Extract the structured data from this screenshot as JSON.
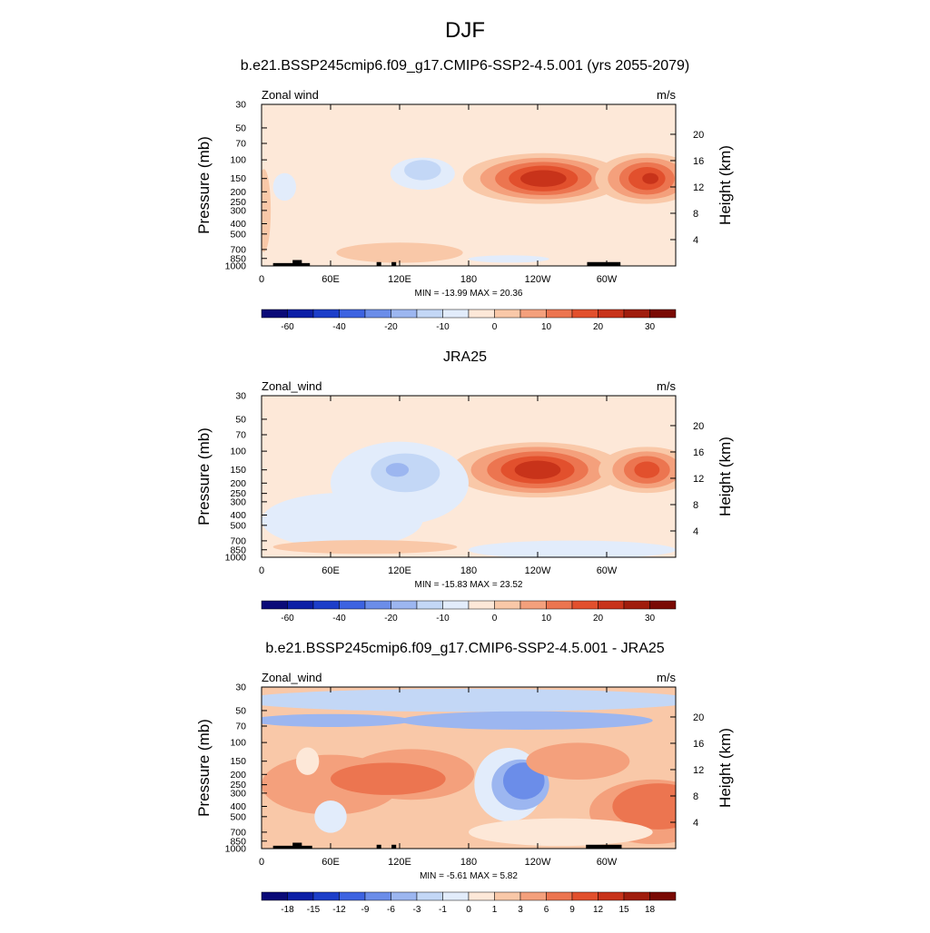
{
  "figure": {
    "title": "DJF"
  },
  "colors": {
    "wind_levels": [
      "#0a0a78",
      "#0c1fa6",
      "#1c3ec9",
      "#3d63e1",
      "#6b8de9",
      "#9cb6f0",
      "#c3d7f6",
      "#e2ecfb",
      "#fde8d8",
      "#f9c8a8",
      "#f4a07c",
      "#ec7550",
      "#e2502d",
      "#c8331a",
      "#a01d0d",
      "#7a0a04"
    ],
    "diff_levels": [
      "#0a0a78",
      "#0c1fa6",
      "#1c3ec9",
      "#3d63e1",
      "#6b8de9",
      "#9cb6f0",
      "#c3d7f6",
      "#e2ecfb",
      "#fde8d8",
      "#f9c8a8",
      "#f4a07c",
      "#ec7550",
      "#e2502d",
      "#c8331a",
      "#a01d0d",
      "#7a0a04"
    ],
    "terrain": "#000000"
  },
  "chart_data": [
    {
      "type": "heatmap",
      "title": "b.e21.BSSP245cmip6.f09_g17.CMIP6-SSP2-4.5.001 (yrs 2055-2079)",
      "left_label": "Zonal wind",
      "units_label": "m/s",
      "ylabel": "Pressure (mb)",
      "right_ylabel": "Height (km)",
      "x_ticks": [
        "0",
        "60E",
        "120E",
        "180",
        "120W",
        "60W"
      ],
      "x_tick_lon": [
        0,
        60,
        120,
        180,
        240,
        300
      ],
      "xlim": [
        0,
        360
      ],
      "y_ticks": [
        "30",
        "50",
        "70",
        "100",
        "150",
        "200",
        "250",
        "300",
        "400",
        "500",
        "700",
        "850",
        "1000"
      ],
      "y_tick_p": [
        30,
        50,
        70,
        100,
        150,
        200,
        250,
        300,
        400,
        500,
        700,
        850,
        1000
      ],
      "ylim": [
        1000,
        30
      ],
      "yscale": "log",
      "height_ticks": [
        "20",
        "16",
        "12",
        "8",
        "4"
      ],
      "height_tick_km": [
        20,
        16,
        12,
        8,
        4
      ],
      "min": -13.99,
      "max": 20.36,
      "stats_text": "MIN = -13.99  MAX =  20.36",
      "colorbar_labels": [
        "-60",
        "-40",
        "-20",
        "-10",
        "0",
        "10",
        "20",
        "30"
      ],
      "colorbar_label_idx": [
        1,
        3,
        5,
        7,
        9,
        11,
        13,
        15
      ],
      "palette": "wind_levels",
      "background_level": 8,
      "features": [
        {
          "lon": 170,
          "p": 3.0,
          "sx": 80,
          "sy": 0.7,
          "level": 9
        },
        {
          "lon": 245,
          "p": 150,
          "sx": 70,
          "sy": 0.55,
          "level": 9
        },
        {
          "lon": 245,
          "p": 150,
          "sx": 55,
          "sy": 0.45,
          "level": 10
        },
        {
          "lon": 245,
          "p": 150,
          "sx": 42,
          "sy": 0.36,
          "level": 11
        },
        {
          "lon": 245,
          "p": 150,
          "sx": 30,
          "sy": 0.28,
          "level": 12
        },
        {
          "lon": 245,
          "p": 150,
          "sx": 20,
          "sy": 0.18,
          "level": 13
        },
        {
          "lon": 335,
          "p": 150,
          "sx": 45,
          "sy": 0.55,
          "level": 9
        },
        {
          "lon": 335,
          "p": 150,
          "sx": 34,
          "sy": 0.45,
          "level": 10
        },
        {
          "lon": 335,
          "p": 150,
          "sx": 24,
          "sy": 0.35,
          "level": 11
        },
        {
          "lon": 335,
          "p": 150,
          "sx": 16,
          "sy": 0.25,
          "level": 12
        },
        {
          "lon": 338,
          "p": 150,
          "sx": 7,
          "sy": 0.12,
          "level": 13
        },
        {
          "lon": 140,
          "p": 135,
          "sx": 28,
          "sy": 0.35,
          "level": 7
        },
        {
          "lon": 140,
          "p": 125,
          "sx": 16,
          "sy": 0.22,
          "level": 6
        },
        {
          "lon": 20,
          "p": 180,
          "sx": 10,
          "sy": 0.3,
          "level": 7
        },
        {
          "lon": 120,
          "p": 750,
          "sx": 55,
          "sy": 0.22,
          "level": 9
        },
        {
          "lon": 215,
          "p": 860,
          "sx": 35,
          "sy": 0.08,
          "level": 7
        },
        {
          "lon": 2,
          "p": 300,
          "sx": 6,
          "sy": 0.9,
          "level": 9
        }
      ],
      "terrain": [
        {
          "lon0": 10,
          "lon1": 42,
          "p": 940
        },
        {
          "lon0": 27,
          "lon1": 35,
          "p": 880
        },
        {
          "lon0": 100,
          "lon1": 104,
          "p": 920
        },
        {
          "lon0": 113,
          "lon1": 117,
          "p": 920
        },
        {
          "lon0": 283,
          "lon1": 312,
          "p": 920
        }
      ]
    },
    {
      "type": "heatmap",
      "title": "JRA25",
      "left_label": "Zonal_wind",
      "units_label": "m/s",
      "ylabel": "Pressure (mb)",
      "right_ylabel": "Height (km)",
      "x_ticks": [
        "0",
        "60E",
        "120E",
        "180",
        "120W",
        "60W"
      ],
      "x_tick_lon": [
        0,
        60,
        120,
        180,
        240,
        300
      ],
      "xlim": [
        0,
        360
      ],
      "y_ticks": [
        "30",
        "50",
        "70",
        "100",
        "150",
        "200",
        "250",
        "300",
        "400",
        "500",
        "700",
        "850",
        "1000"
      ],
      "y_tick_p": [
        30,
        50,
        70,
        100,
        150,
        200,
        250,
        300,
        400,
        500,
        700,
        850,
        1000
      ],
      "ylim": [
        1000,
        30
      ],
      "yscale": "log",
      "height_ticks": [
        "20",
        "16",
        "12",
        "8",
        "4"
      ],
      "height_tick_km": [
        20,
        16,
        12,
        8,
        4
      ],
      "min": -15.83,
      "max": 23.52,
      "stats_text": "MIN = -15.83  MAX =  23.52",
      "colorbar_labels": [
        "-60",
        "-40",
        "-20",
        "-10",
        "0",
        "10",
        "20",
        "30"
      ],
      "colorbar_label_idx": [
        1,
        3,
        5,
        7,
        9,
        11,
        13,
        15
      ],
      "palette": "wind_levels",
      "background_level": 8,
      "features": [
        {
          "lon": 240,
          "p": 150,
          "sx": 75,
          "sy": 0.6,
          "level": 9
        },
        {
          "lon": 240,
          "p": 150,
          "sx": 58,
          "sy": 0.5,
          "level": 10
        },
        {
          "lon": 240,
          "p": 150,
          "sx": 44,
          "sy": 0.4,
          "level": 11
        },
        {
          "lon": 240,
          "p": 150,
          "sx": 32,
          "sy": 0.3,
          "level": 12
        },
        {
          "lon": 240,
          "p": 150,
          "sx": 20,
          "sy": 0.2,
          "level": 13
        },
        {
          "lon": 335,
          "p": 150,
          "sx": 42,
          "sy": 0.5,
          "level": 9
        },
        {
          "lon": 335,
          "p": 150,
          "sx": 30,
          "sy": 0.4,
          "level": 10
        },
        {
          "lon": 335,
          "p": 150,
          "sx": 20,
          "sy": 0.3,
          "level": 11
        },
        {
          "lon": 335,
          "p": 150,
          "sx": 11,
          "sy": 0.18,
          "level": 12
        },
        {
          "lon": 120,
          "p": 200,
          "sx": 60,
          "sy": 0.9,
          "level": 7
        },
        {
          "lon": 125,
          "p": 160,
          "sx": 30,
          "sy": 0.42,
          "level": 6
        },
        {
          "lon": 118,
          "p": 150,
          "sx": 10,
          "sy": 0.15,
          "level": 5
        },
        {
          "lon": 70,
          "p": 450,
          "sx": 70,
          "sy": 0.6,
          "level": 7
        },
        {
          "lon": 90,
          "p": 800,
          "sx": 80,
          "sy": 0.15,
          "level": 9
        },
        {
          "lon": 270,
          "p": 850,
          "sx": 90,
          "sy": 0.2,
          "level": 7
        },
        {
          "lon": 170,
          "p": 3.5,
          "sx": 100,
          "sy": 0.8,
          "level": 9
        }
      ],
      "terrain": []
    },
    {
      "type": "heatmap",
      "title": "b.e21.BSSP245cmip6.f09_g17.CMIP6-SSP2-4.5.001 - JRA25",
      "left_label": "Zonal_wind",
      "units_label": "m/s",
      "ylabel": "Pressure (mb)",
      "right_ylabel": "Height (km)",
      "x_ticks": [
        "0",
        "60E",
        "120E",
        "180",
        "120W",
        "60W"
      ],
      "x_tick_lon": [
        0,
        60,
        120,
        180,
        240,
        300
      ],
      "xlim": [
        0,
        360
      ],
      "y_ticks": [
        "30",
        "50",
        "70",
        "100",
        "150",
        "200",
        "250",
        "300",
        "400",
        "500",
        "700",
        "850",
        "1000"
      ],
      "y_tick_p": [
        30,
        50,
        70,
        100,
        150,
        200,
        250,
        300,
        400,
        500,
        700,
        850,
        1000
      ],
      "ylim": [
        1000,
        30
      ],
      "yscale": "log",
      "height_ticks": [
        "20",
        "16",
        "12",
        "8",
        "4"
      ],
      "height_tick_km": [
        20,
        16,
        12,
        8,
        4
      ],
      "min": -5.61,
      "max": 5.82,
      "stats_text": "MIN = -5.61  MAX =  5.82",
      "colorbar_labels": [
        "-18",
        "-15",
        "-12",
        "-9",
        "-6",
        "-3",
        "-1",
        "0",
        "1",
        "3",
        "6",
        "9",
        "12",
        "15",
        "18"
      ],
      "colorbar_label_idx": [
        1,
        2,
        3,
        4,
        5,
        6,
        7,
        8,
        9,
        10,
        11,
        12,
        13,
        14,
        15
      ],
      "palette": "diff_levels",
      "background_level": 9,
      "features": [
        {
          "lon": 180,
          "p": 40,
          "sx": 200,
          "sy": 0.25,
          "level": 6
        },
        {
          "lon": 230,
          "p": 62,
          "sx": 110,
          "sy": 0.2,
          "level": 5
        },
        {
          "lon": 60,
          "p": 62,
          "sx": 70,
          "sy": 0.14,
          "level": 5
        },
        {
          "lon": 60,
          "p": 250,
          "sx": 60,
          "sy": 0.65,
          "level": 10
        },
        {
          "lon": 130,
          "p": 200,
          "sx": 55,
          "sy": 0.55,
          "level": 10
        },
        {
          "lon": 110,
          "p": 220,
          "sx": 50,
          "sy": 0.35,
          "level": 11
        },
        {
          "lon": 215,
          "p": 250,
          "sx": 30,
          "sy": 0.8,
          "level": 7
        },
        {
          "lon": 225,
          "p": 250,
          "sx": 25,
          "sy": 0.55,
          "level": 5
        },
        {
          "lon": 228,
          "p": 230,
          "sx": 18,
          "sy": 0.4,
          "level": 4
        },
        {
          "lon": 275,
          "p": 150,
          "sx": 45,
          "sy": 0.4,
          "level": 10
        },
        {
          "lon": 340,
          "p": 450,
          "sx": 55,
          "sy": 0.7,
          "level": 10
        },
        {
          "lon": 345,
          "p": 400,
          "sx": 40,
          "sy": 0.5,
          "level": 11
        },
        {
          "lon": 60,
          "p": 500,
          "sx": 14,
          "sy": 0.35,
          "level": 7
        },
        {
          "lon": 40,
          "p": 150,
          "sx": 10,
          "sy": 0.3,
          "level": 8
        },
        {
          "lon": 260,
          "p": 700,
          "sx": 80,
          "sy": 0.3,
          "level": 8
        }
      ],
      "terrain": [
        {
          "lon0": 10,
          "lon1": 44,
          "p": 940
        },
        {
          "lon0": 27,
          "lon1": 35,
          "p": 880
        },
        {
          "lon0": 100,
          "lon1": 104,
          "p": 920
        },
        {
          "lon0": 113,
          "lon1": 117,
          "p": 920
        },
        {
          "lon0": 282,
          "lon1": 313,
          "p": 920
        }
      ]
    }
  ]
}
